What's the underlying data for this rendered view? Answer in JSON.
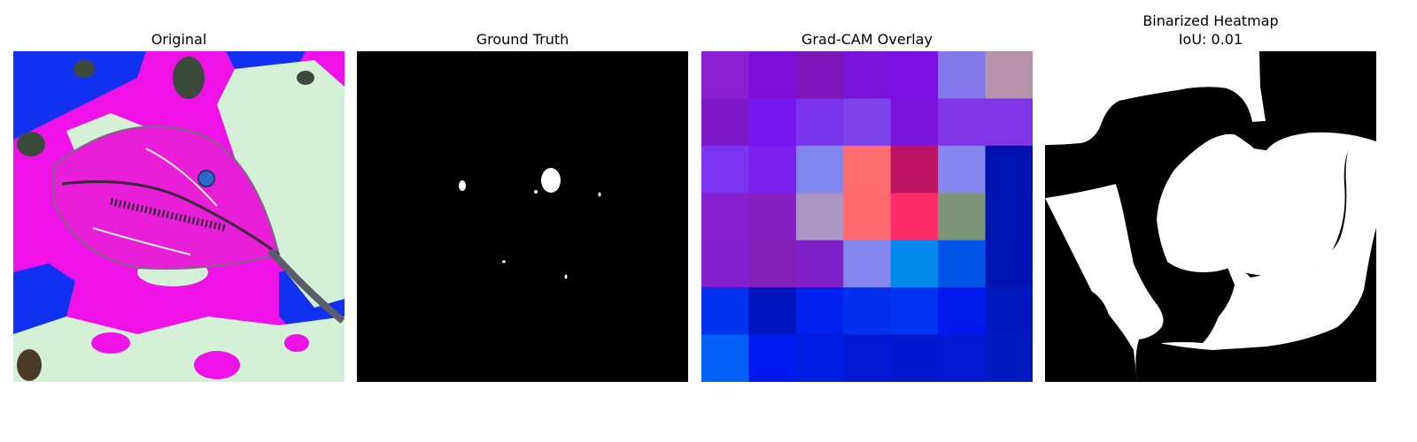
{
  "panels": {
    "original": {
      "title": "Original"
    },
    "ground_truth": {
      "title": "Ground Truth"
    },
    "gradcam": {
      "title": "Grad-CAM Overlay",
      "grid": [
        [
          "#8a1fd4",
          "#7c10d8",
          "#7d16b8",
          "#7a14d8",
          "#7c10e4",
          "#8377ea",
          "#b894aa"
        ],
        [
          "#7d18c8",
          "#7418ee",
          "#7a34ea",
          "#7c44ea",
          "#7a14dc",
          "#8036e6",
          "#8036e6"
        ],
        [
          "#7c34f0",
          "#7a20ee",
          "#8088ee",
          "#fe6e6e",
          "#bc1460",
          "#8488ee",
          "#0012ae"
        ],
        [
          "#8420d0",
          "#8420c0",
          "#a896c4",
          "#fe6a6e",
          "#fe2c6a",
          "#7a9676",
          "#0014b0"
        ],
        [
          "#8220d0",
          "#8220ba",
          "#8020c8",
          "#8488ee",
          "#0088ea",
          "#0054e8",
          "#0014b4"
        ],
        [
          "#0034ec",
          "#0014c0",
          "#0020ec",
          "#0030ec",
          "#0034f0",
          "#0018ec",
          "#0018c0"
        ],
        [
          "#0060f4",
          "#0018f0",
          "#001ce0",
          "#0018d4",
          "#0018cc",
          "#0018d0",
          "#001ac0"
        ]
      ]
    },
    "binarized": {
      "title_line1": "Binarized Heatmap",
      "title_line2": "IoU: 0.01"
    }
  },
  "colors": {
    "magenta": "#ee12e6",
    "pale_green": "#d4f0d6",
    "blue": "#1230f0",
    "dark_olive": "#3c4a3c",
    "leaf_pink": "#e81ed8",
    "vein": "#5a5e6a"
  }
}
